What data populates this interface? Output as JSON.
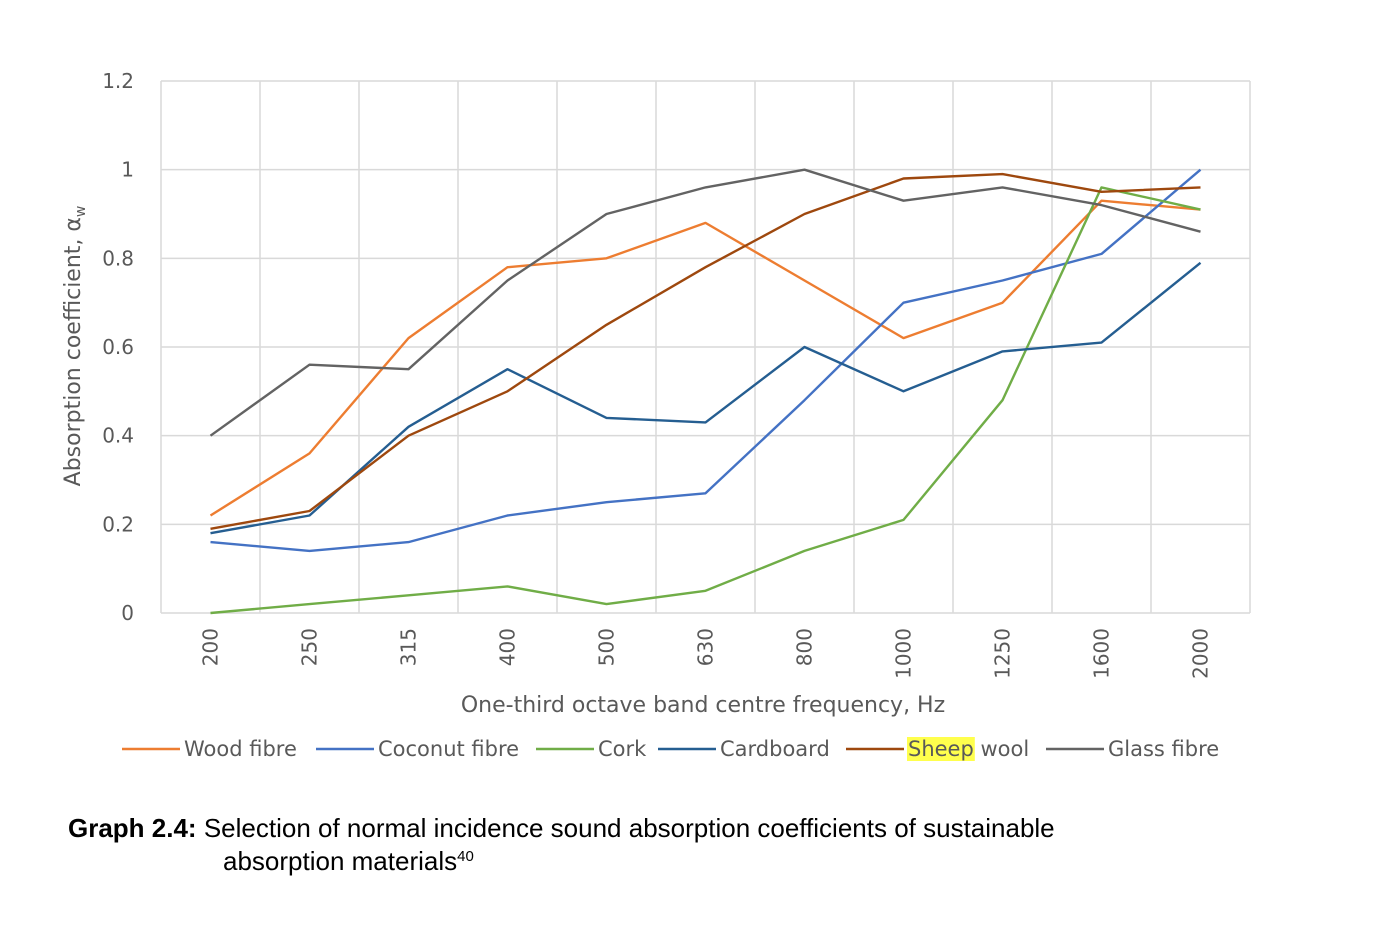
{
  "chart_data": {
    "type": "line",
    "categories": [
      "200",
      "250",
      "315",
      "400",
      "500",
      "630",
      "800",
      "1000",
      "1250",
      "1600",
      "2000"
    ],
    "series": [
      {
        "name": "Wood fibre",
        "color": "#ED7D31",
        "values": [
          0.22,
          0.36,
          0.62,
          0.78,
          0.8,
          0.88,
          0.75,
          0.62,
          0.7,
          0.93,
          0.91
        ]
      },
      {
        "name": "Coconut fibre",
        "color": "#4472C4",
        "values": [
          0.16,
          0.14,
          0.16,
          0.22,
          0.25,
          0.27,
          0.48,
          0.7,
          0.75,
          0.81,
          1.0
        ]
      },
      {
        "name": "Cork",
        "color": "#70AD47",
        "values": [
          0.0,
          0.02,
          0.04,
          0.06,
          0.02,
          0.05,
          0.14,
          0.21,
          0.48,
          0.96,
          0.91
        ]
      },
      {
        "name": "Cardboard",
        "color": "#255E91",
        "values": [
          0.18,
          0.22,
          0.42,
          0.55,
          0.44,
          0.43,
          0.6,
          0.5,
          0.59,
          0.61,
          0.79
        ]
      },
      {
        "name": "Sheep wool",
        "color": "#9E480E",
        "values": [
          0.19,
          0.23,
          0.4,
          0.5,
          0.65,
          0.78,
          0.9,
          0.98,
          0.99,
          0.95,
          0.96
        ]
      },
      {
        "name": "Glass fibre",
        "color": "#636363",
        "values": [
          0.4,
          0.56,
          0.55,
          0.75,
          0.9,
          0.96,
          1.0,
          0.93,
          0.96,
          0.92,
          0.86
        ]
      }
    ],
    "legend_highlight": {
      "series": "Sheep wool",
      "word": "Sheep",
      "rest": " wool",
      "color": "#FFFF4D"
    },
    "xlabel": "One-third octave band centre frequency, Hz",
    "ylabel": "Absorption coefficient, α",
    "ylabel_subscript": "w",
    "ylim": [
      0,
      1.2
    ],
    "yticks": [
      "0",
      "0.2",
      "0.4",
      "0.6",
      "0.8",
      "1",
      "1.2"
    ],
    "ytick_values": [
      0,
      0.2,
      0.4,
      0.6,
      0.8,
      1.0,
      1.2
    ],
    "grid": true,
    "legend_position": "bottom"
  },
  "caption": {
    "label": "Graph 2.4:",
    "text_line1": " Selection of normal incidence sound absorption coefficients of sustainable",
    "text_line2": "absorption materials",
    "superscript": "40"
  }
}
